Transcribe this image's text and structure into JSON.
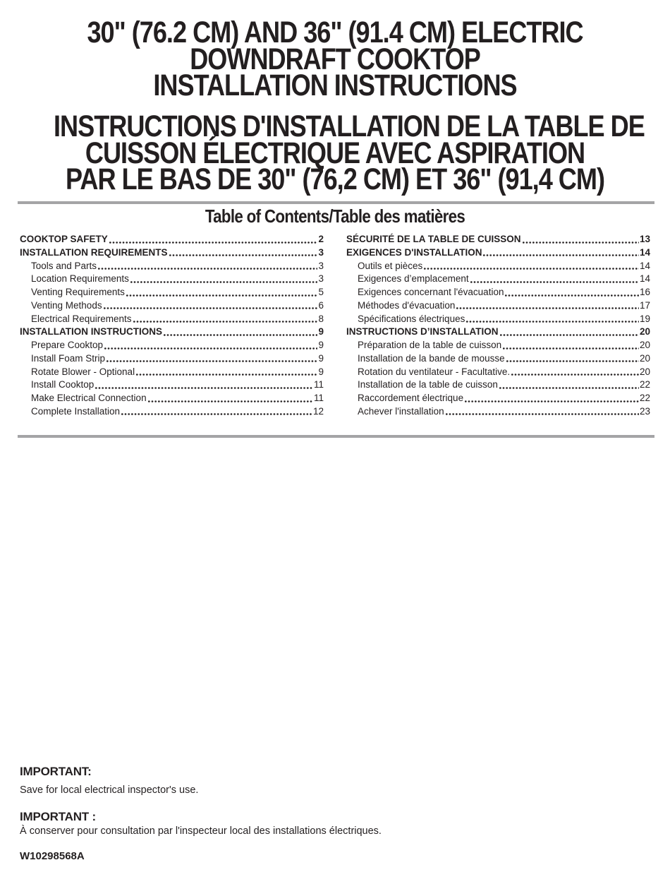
{
  "header": {
    "title_en_lines": [
      "30\" (76.2 CM) AND 36\" (91.4 CM) ELECTRIC",
      "DOWNDRAFT COOKTOP",
      "INSTALLATION INSTRUCTIONS"
    ],
    "title_fr_lines": [
      "INSTRUCTIONS D'INSTALLATION DE LA TABLE DE",
      "CUISSON ÉLECTRIQUE AVEC ASPIRATION",
      "PAR LE BAS DE 30\" (76,2 CM) ET 36\" (91,4 CM)"
    ],
    "toc_heading": "Table of Contents/Table des matières"
  },
  "toc": {
    "left": [
      {
        "label": "COOKTOP SAFETY",
        "page": "2",
        "style": "main"
      },
      {
        "label": "INSTALLATION REQUIREMENTS",
        "page": "3",
        "style": "main"
      },
      {
        "label": "Tools and Parts",
        "page": "3",
        "style": "sub"
      },
      {
        "label": "Location Requirements",
        "page": "3",
        "style": "sub"
      },
      {
        "label": "Venting Requirements",
        "page": "5",
        "style": "sub"
      },
      {
        "label": "Venting Methods",
        "page": "6",
        "style": "sub"
      },
      {
        "label": "Electrical Requirements",
        "page": "8",
        "style": "sub"
      },
      {
        "label": "INSTALLATION INSTRUCTIONS",
        "page": "9",
        "style": "main"
      },
      {
        "label": "Prepare Cooktop",
        "page": "9",
        "style": "sub"
      },
      {
        "label": "Install Foam Strip",
        "page": "9",
        "style": "sub"
      },
      {
        "label": "Rotate Blower - Optional",
        "page": "9",
        "style": "sub"
      },
      {
        "label": "Install Cooktop",
        "page": "11",
        "style": "sub"
      },
      {
        "label": "Make Electrical Connection",
        "page": "11",
        "style": "sub"
      },
      {
        "label": "Complete Installation",
        "page": "12",
        "style": "sub"
      }
    ],
    "right": [
      {
        "label": "SÉCURITÉ DE LA TABLE DE CUISSON",
        "page": "13",
        "style": "main"
      },
      {
        "label": "EXIGENCES D'INSTALLATION",
        "page": "14",
        "style": "main"
      },
      {
        "label": "Outils et pièces",
        "page": "14",
        "style": "sub"
      },
      {
        "label": "Exigences d’emplacement",
        "page": "14",
        "style": "sub"
      },
      {
        "label": "Exigences concernant l'évacuation",
        "page": "16",
        "style": "sub"
      },
      {
        "label": "Méthodes d'évacuation",
        "page": "17",
        "style": "sub"
      },
      {
        "label": "Spécifications électriques",
        "page": "19",
        "style": "sub"
      },
      {
        "label": "INSTRUCTIONS D’INSTALLATION",
        "page": "20",
        "style": "main"
      },
      {
        "label": "Préparation de la table de cuisson",
        "page": "20",
        "style": "sub"
      },
      {
        "label": "Installation de la bande de mousse",
        "page": "20",
        "style": "sub"
      },
      {
        "label": "Rotation du ventilateur - Facultative.",
        "page": "20",
        "style": "sub"
      },
      {
        "label": "Installation de la table de cuisson",
        "page": "22",
        "style": "sub"
      },
      {
        "label": "Raccordement électrique",
        "page": "22",
        "style": "sub"
      },
      {
        "label": "Achever l'installation",
        "page": "23",
        "style": "sub"
      }
    ]
  },
  "footer": {
    "important_en_heading": "IMPORTANT:",
    "important_en_text": "Save for local electrical inspector's use.",
    "important_fr_heading": "IMPORTANT :",
    "important_fr_text": "À conserver pour consultation par l'inspecteur local des installations électriques.",
    "doc_number": "W10298568A"
  },
  "colors": {
    "text": "#231f20",
    "rule": "#a4a4a6"
  }
}
